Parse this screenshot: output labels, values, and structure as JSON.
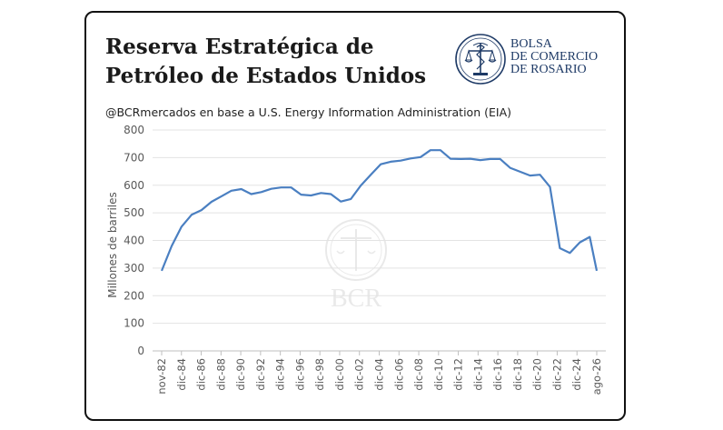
{
  "header": {
    "title_line1": "Reserva Estratégica de",
    "title_line2": "Petróleo de Estados Unidos",
    "subtitle": "@BCRmercados en base a U.S. Energy Information Administration (EIA)"
  },
  "logo": {
    "line1": "BOLSA",
    "line2": "DE COMERCIO",
    "line3": "DE ROSARIO",
    "watermark": "BCR",
    "color": "#1e3a66"
  },
  "chart_data": {
    "type": "line",
    "ylabel": "Millones de barriles",
    "xlabel": "",
    "ylim": [
      0,
      800
    ],
    "yticks": [
      0,
      100,
      200,
      300,
      400,
      500,
      600,
      700,
      800
    ],
    "grid": true,
    "legend": "none",
    "line_color": "#4a7fc1",
    "categories": [
      "nov-82",
      "dic-84",
      "dic-86",
      "dic-88",
      "dic-90",
      "dic-92",
      "dic-94",
      "dic-96",
      "dic-98",
      "dic-00",
      "dic-02",
      "dic-04",
      "dic-06",
      "dic-08",
      "dic-10",
      "dic-12",
      "dic-14",
      "dic-16",
      "dic-18",
      "dic-20",
      "dic-22",
      "dic-24",
      "ago-26"
    ],
    "series": [
      {
        "values": [
          {
            "x": 1982.9,
            "y": 290
          },
          {
            "x": 1983.9,
            "y": 380
          },
          {
            "x": 1984.9,
            "y": 450
          },
          {
            "x": 1985.9,
            "y": 493
          },
          {
            "x": 1986.9,
            "y": 510
          },
          {
            "x": 1987.9,
            "y": 540
          },
          {
            "x": 1988.9,
            "y": 560
          },
          {
            "x": 1989.9,
            "y": 580
          },
          {
            "x": 1990.9,
            "y": 586
          },
          {
            "x": 1991.9,
            "y": 568
          },
          {
            "x": 1992.9,
            "y": 575
          },
          {
            "x": 1993.9,
            "y": 587
          },
          {
            "x": 1994.9,
            "y": 592
          },
          {
            "x": 1995.9,
            "y": 592
          },
          {
            "x": 1996.9,
            "y": 566
          },
          {
            "x": 1997.9,
            "y": 563
          },
          {
            "x": 1998.9,
            "y": 572
          },
          {
            "x": 1999.9,
            "y": 568
          },
          {
            "x": 2000.9,
            "y": 541
          },
          {
            "x": 2001.9,
            "y": 550
          },
          {
            "x": 2002.9,
            "y": 599
          },
          {
            "x": 2003.9,
            "y": 638
          },
          {
            "x": 2004.9,
            "y": 676
          },
          {
            "x": 2005.9,
            "y": 685
          },
          {
            "x": 2006.9,
            "y": 689
          },
          {
            "x": 2007.9,
            "y": 697
          },
          {
            "x": 2008.9,
            "y": 702
          },
          {
            "x": 2009.9,
            "y": 727
          },
          {
            "x": 2010.9,
            "y": 727
          },
          {
            "x": 2011.9,
            "y": 696
          },
          {
            "x": 2012.9,
            "y": 695
          },
          {
            "x": 2013.9,
            "y": 696
          },
          {
            "x": 2014.9,
            "y": 691
          },
          {
            "x": 2015.9,
            "y": 695
          },
          {
            "x": 2016.9,
            "y": 695
          },
          {
            "x": 2017.9,
            "y": 663
          },
          {
            "x": 2018.9,
            "y": 649
          },
          {
            "x": 2019.9,
            "y": 635
          },
          {
            "x": 2020.9,
            "y": 638
          },
          {
            "x": 2021.9,
            "y": 594
          },
          {
            "x": 2022.9,
            "y": 372
          },
          {
            "x": 2023.9,
            "y": 355
          },
          {
            "x": 2024.9,
            "y": 393
          },
          {
            "x": 2025.9,
            "y": 413
          },
          {
            "x": 2026.6,
            "y": 290
          }
        ]
      }
    ]
  }
}
